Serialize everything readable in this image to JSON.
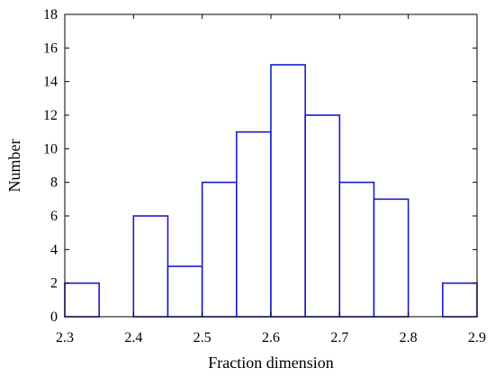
{
  "chart_data": {
    "type": "bar",
    "subtype": "histogram",
    "title": "",
    "xlabel": "Fraction dimension",
    "ylabel": "Number",
    "xlim": [
      2.3,
      2.9
    ],
    "ylim": [
      0,
      18
    ],
    "bin_width": 0.05,
    "x_ticks": [
      "2.3",
      "2.4",
      "2.5",
      "2.6",
      "2.7",
      "2.8",
      "2.9"
    ],
    "y_ticks": [
      "0",
      "2",
      "4",
      "6",
      "8",
      "10",
      "12",
      "14",
      "16",
      "18"
    ],
    "bins": [
      {
        "start": 2.3,
        "end": 2.35,
        "value": 2
      },
      {
        "start": 2.4,
        "end": 2.45,
        "value": 6
      },
      {
        "start": 2.45,
        "end": 2.5,
        "value": 3
      },
      {
        "start": 2.5,
        "end": 2.55,
        "value": 8
      },
      {
        "start": 2.55,
        "end": 2.6,
        "value": 11
      },
      {
        "start": 2.6,
        "end": 2.65,
        "value": 15
      },
      {
        "start": 2.65,
        "end": 2.7,
        "value": 12
      },
      {
        "start": 2.7,
        "end": 2.75,
        "value": 8
      },
      {
        "start": 2.75,
        "end": 2.8,
        "value": 7
      },
      {
        "start": 2.85,
        "end": 2.9,
        "value": 2
      }
    ],
    "bar_color": "#1a1acd",
    "grid": false,
    "legend": "none"
  }
}
